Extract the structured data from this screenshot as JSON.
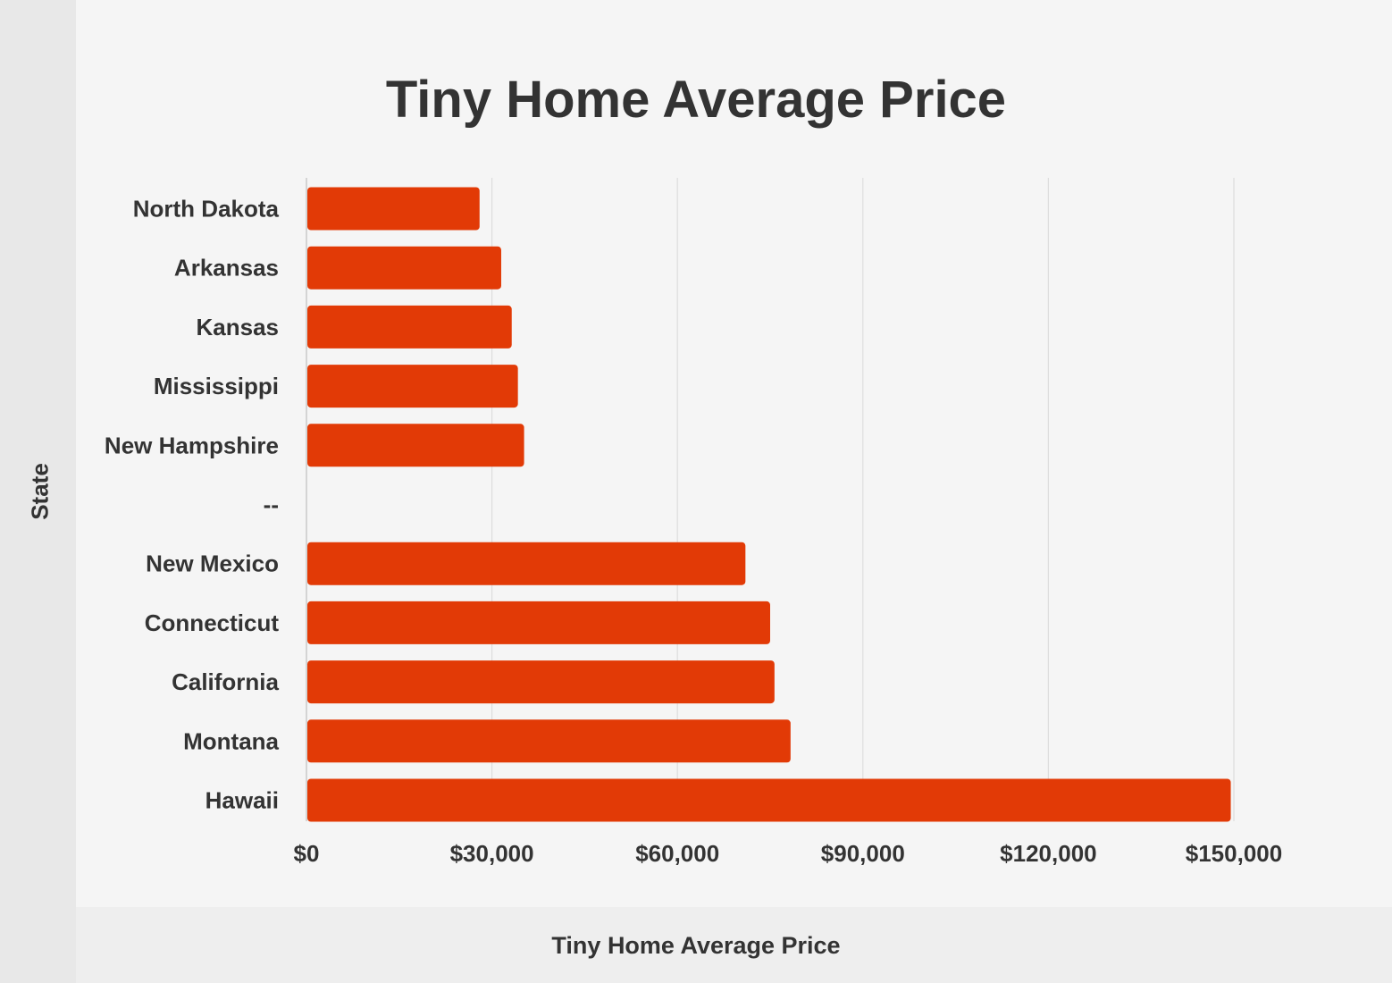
{
  "chart_data": {
    "type": "bar",
    "orientation": "horizontal",
    "title": "Tiny Home Average Price",
    "xlabel": "Tiny Home Average Price",
    "ylabel": "State",
    "categories": [
      "North Dakota",
      "Arkansas",
      "Kansas",
      "Mississippi",
      "New Hampshire",
      "--",
      "New Mexico",
      "Connecticut",
      "California",
      "Montana",
      "Hawaii"
    ],
    "values": [
      28000,
      31500,
      33200,
      34200,
      35200,
      null,
      71000,
      75000,
      75700,
      78300,
      149500
    ],
    "xlim": [
      0,
      150000
    ],
    "xticks": [
      0,
      30000,
      60000,
      90000,
      120000,
      150000
    ],
    "xtick_labels": [
      "$0",
      "$30,000",
      "$60,000",
      "$90,000",
      "$120,000",
      "$150,000"
    ],
    "grid": true,
    "bar_color": "#e23a06"
  }
}
